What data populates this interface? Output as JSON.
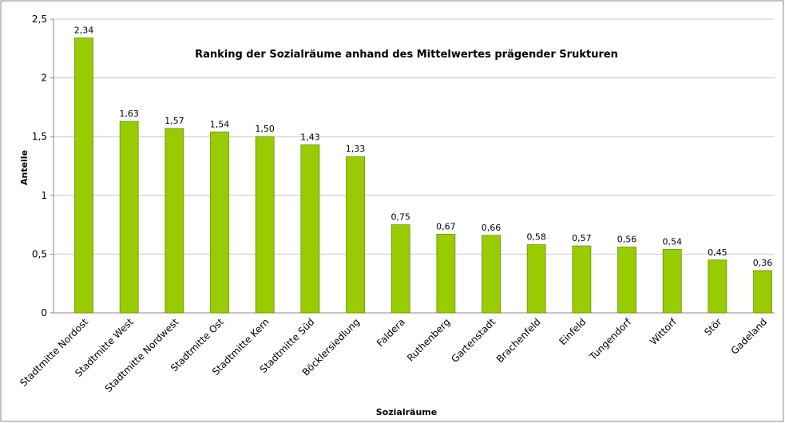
{
  "chart_data": {
    "type": "bar",
    "title": "Ranking der Sozialräume anhand des Mittelwertes prägender Srukturen",
    "x_label": "Sozialräume",
    "y_label": "Anteile",
    "categories": [
      "Stadtmitte Nordost",
      "Stadtmitte West",
      "Stadtmitte Nordwest",
      "Stadtmitte Ost",
      "Stadtmitte Kern",
      "Stadtmitte Süd",
      "Böcklersiedlung",
      "Faldera",
      "Ruthenberg",
      "Gartenstadt",
      "Brachenfeld",
      "Einfeld",
      "Tungendorf",
      "Wittorf",
      "Stör",
      "Gadeland"
    ],
    "values": [
      2.34,
      1.63,
      1.57,
      1.54,
      1.5,
      1.43,
      1.33,
      0.75,
      0.67,
      0.66,
      0.58,
      0.57,
      0.56,
      0.54,
      0.45,
      0.36
    ],
    "value_labels": [
      "2,34",
      "1,63",
      "1,57",
      "1,54",
      "1,50",
      "1,43",
      "1,33",
      "0,75",
      "0,67",
      "0,66",
      "0,58",
      "0,57",
      "0,56",
      "0,54",
      "0,45",
      "0,36"
    ],
    "color": "#99cc00",
    "ylim": [
      0,
      2.5
    ],
    "yticks": [
      0,
      {
        "value": 0.5,
        "label": "0,5"
      },
      1,
      {
        "value": 1.5,
        "label": "1,5"
      },
      2,
      {
        "value": 2.5,
        "label": "2,5"
      }
    ],
    "grid": true
  }
}
